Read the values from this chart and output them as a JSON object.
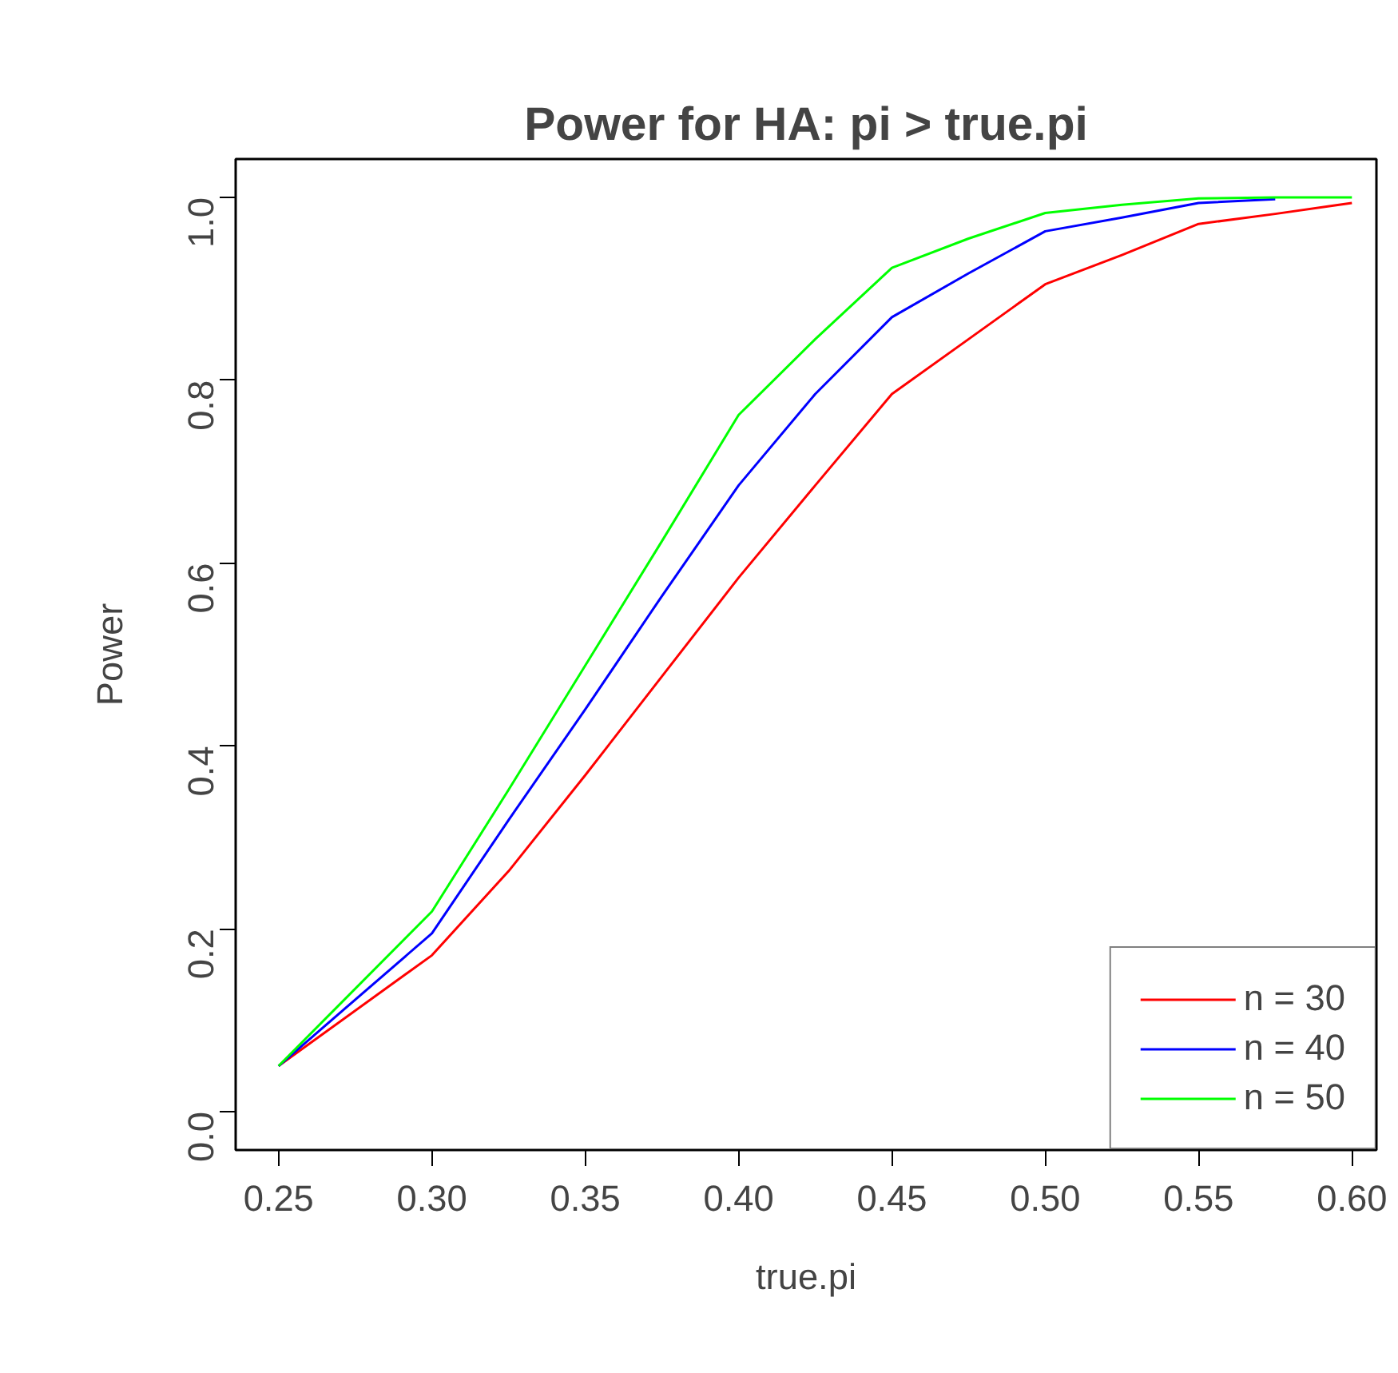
{
  "chart_data": {
    "type": "line",
    "title": "Power for HA: pi > true.pi",
    "xlabel": "true.pi",
    "ylabel": "Power",
    "x": [
      0.25,
      0.3,
      0.325,
      0.35,
      0.375,
      0.4,
      0.425,
      0.45,
      0.475,
      0.5,
      0.525,
      0.55,
      0.575,
      0.6
    ],
    "series": [
      {
        "name": "n = 30",
        "color": "#ff0000",
        "values": [
          0.05,
          0.171,
          0.263,
          0.368,
          0.476,
          0.584,
          0.685,
          0.785,
          0.845,
          0.905,
          0.937,
          0.971,
          0.982,
          0.994
        ]
      },
      {
        "name": "n = 40",
        "color": "#0000ff",
        "values": [
          0.05,
          0.195,
          0.319,
          0.44,
          0.564,
          0.685,
          0.785,
          0.869,
          0.917,
          0.963,
          0.978,
          0.994,
          0.998,
          null
        ]
      },
      {
        "name": "n = 50",
        "color": "#00ff00",
        "values": [
          0.05,
          0.219,
          0.352,
          0.488,
          0.624,
          0.762,
          0.845,
          0.923,
          0.955,
          0.983,
          0.992,
          0.999,
          1.0,
          1.0
        ]
      }
    ],
    "xlim": [
      0.236,
      0.608
    ],
    "ylim": [
      -0.042,
      1.042
    ],
    "xticks": [
      {
        "value": 0.25,
        "label": "0.25"
      },
      {
        "value": 0.3,
        "label": "0.30"
      },
      {
        "value": 0.35,
        "label": "0.35"
      },
      {
        "value": 0.4,
        "label": "0.40"
      },
      {
        "value": 0.45,
        "label": "0.45"
      },
      {
        "value": 0.5,
        "label": "0.50"
      },
      {
        "value": 0.55,
        "label": "0.55"
      },
      {
        "value": 0.6,
        "label": "0.60"
      }
    ],
    "yticks": [
      {
        "value": 0,
        "label": "0.0"
      },
      {
        "value": 0.2,
        "label": "0.2"
      },
      {
        "value": 0.4,
        "label": "0.4"
      },
      {
        "value": 0.6,
        "label": "0.6"
      },
      {
        "value": 0.8,
        "label": "0.8"
      },
      {
        "value": 1.0,
        "label": "1.0"
      }
    ],
    "grid": false,
    "legend": "bottom right",
    "marker": "none",
    "line_style": "solid"
  }
}
